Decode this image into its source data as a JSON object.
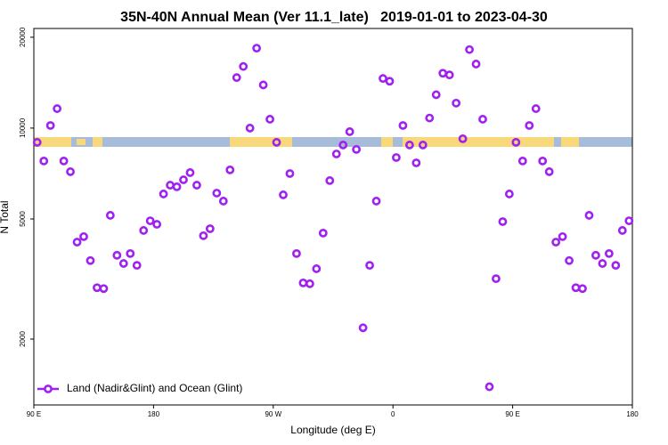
{
  "chart_data": {
    "type": "scatter",
    "title": "35N-40N Annual Mean (Ver 11.1_late)   2019-01-01 to 2023-04-30",
    "x_label": "Longitude (deg E)",
    "y_label": "N Total",
    "xlim": [
      90,
      540
    ],
    "xticks": [
      {
        "value": 90,
        "label": "90 E"
      },
      180,
      {
        "value": 270,
        "label": "90 W"
      },
      {
        "value": 360,
        "label": "0"
      },
      {
        "value": 450,
        "label": "90 E"
      },
      {
        "value": 540,
        "label": "180"
      }
    ],
    "ylim": [
      1210,
      21380
    ],
    "yticks": [
      2000,
      5000,
      10000,
      20000
    ],
    "log_y": true,
    "legend": "lower left",
    "series": [
      {
        "name": "Land (Nadir&Glint) and Ocean (Glint)",
        "color": "#a020f0",
        "x": [
          92.5,
          97.5,
          102.5,
          107.5,
          112.5,
          117.5,
          122.5,
          127.5,
          132.5,
          137.5,
          142.5,
          147.5,
          152.5,
          157.5,
          162.5,
          167.5,
          172.5,
          177.5,
          182.5,
          187.5,
          192.5,
          197.5,
          202.5,
          207.5,
          212.5,
          217.5,
          222.5,
          227.5,
          232.5,
          237.5,
          242.5,
          247.5,
          252.5,
          257.5,
          262.5,
          267.5,
          272.5,
          277.5,
          282.5,
          287.5,
          292.5,
          297.5,
          302.5,
          307.5,
          312.5,
          317.5,
          322.5,
          327.5,
          332.5,
          337.5,
          342.5,
          347.5,
          352.5,
          357.5,
          362.5,
          367.5,
          372.5,
          377.5,
          382.5,
          387.5,
          392.5,
          397.5,
          402.5,
          407.5,
          412.5,
          417.5,
          422.5,
          427.5,
          432.5,
          437.5,
          442.5,
          447.5,
          452.5,
          457.5,
          462.5,
          467.5,
          472.5,
          477.5,
          482.5,
          487.5,
          492.5,
          497.5,
          502.5,
          507.5,
          512.5,
          517.5,
          522.5,
          527.5,
          532.5,
          537.5
        ],
        "values": [
          8970,
          7780,
          10200,
          11600,
          7780,
          7170,
          4190,
          4370,
          3640,
          2960,
          2940,
          5140,
          3790,
          3560,
          3840,
          3510,
          4580,
          4930,
          4800,
          6050,
          6470,
          6390,
          6740,
          7120,
          6470,
          4400,
          4640,
          6090,
          5730,
          7270,
          14700,
          16000,
          10000,
          18400,
          13900,
          10700,
          8970,
          6010,
          7070,
          3840,
          3070,
          3050,
          3420,
          4490,
          6700,
          8210,
          8790,
          9730,
          8500,
          2180,
          3510,
          5730,
          14600,
          14300,
          7990,
          10200,
          8790,
          7670,
          8790,
          10800,
          12900,
          15200,
          15000,
          12100,
          9220,
          18200,
          16300,
          10700,
          1390,
          3170,
          4900,
          6050,
          8970,
          7780,
          10200,
          11600,
          7780,
          7170,
          4190,
          4370,
          3640,
          2960,
          2940,
          5140,
          3790,
          3560,
          3840,
          3510,
          4580,
          4930
        ]
      }
    ]
  }
}
